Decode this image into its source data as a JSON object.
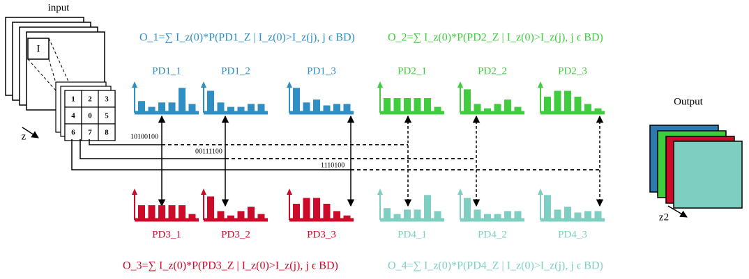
{
  "input": {
    "label": "input",
    "inner_label": "I",
    "grid": [
      "1",
      "2",
      "3",
      "4",
      "0",
      "5",
      "6",
      "7",
      "8"
    ],
    "axis": "z"
  },
  "codes": [
    "10100100",
    "00111100",
    "1110100"
  ],
  "formulas": [
    "O_1=∑ I_z(0)*P(PD1_Z | I_z(0)>I_z(j), j ϵ BD)",
    "O_2=∑ I_z(0)*P(PD2_Z | I_z(0)>I_z(j), j ϵ BD)",
    "O_3=∑ I_z(0)*P(PD3_Z | I_z(0)>I_z(j), j ϵ BD)",
    "O_4=∑ I_z(0)*P(PD4_Z | I_z(0)>I_z(j), j ϵ BD)"
  ],
  "histograms": {
    "top": [
      "PD1_1",
      "PD1_2",
      "PD1_3",
      "PD2_1",
      "PD2_2",
      "PD2_3"
    ],
    "bottom": [
      "PD3_1",
      "PD3_2",
      "PD3_3",
      "PD4_1",
      "PD4_2",
      "PD4_3"
    ]
  },
  "output": {
    "label": "Output",
    "axis": "z2"
  }
}
